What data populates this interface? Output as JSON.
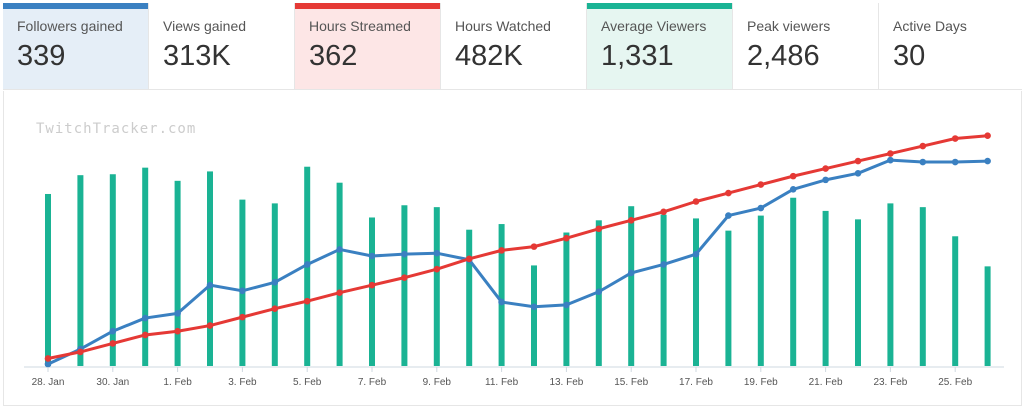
{
  "stats": [
    {
      "label": "Followers gained",
      "value": "339",
      "accent": "#3a80c1",
      "highlight": "blue"
    },
    {
      "label": "Views gained",
      "value": "313K"
    },
    {
      "label": "Hours Streamed",
      "value": "362",
      "accent": "#e53935",
      "highlight": "red"
    },
    {
      "label": "Hours Watched",
      "value": "482K"
    },
    {
      "label": "Average Viewers",
      "value": "1,331",
      "accent": "#1ab394",
      "highlight": "teal"
    },
    {
      "label": "Peak viewers",
      "value": "2,486"
    },
    {
      "label": "Active Days",
      "value": "30"
    }
  ],
  "watermark": "TwitchTracker.com",
  "chart_data": {
    "type": "bar",
    "title": "",
    "categories": [
      "28. Jan",
      "29. Jan",
      "30. Jan",
      "31. Jan",
      "1. Feb",
      "2. Feb",
      "3. Feb",
      "4. Feb",
      "5. Feb",
      "6. Feb",
      "7. Feb",
      "8. Feb",
      "9. Feb",
      "10. Feb",
      "11. Feb",
      "12. Feb",
      "13. Feb",
      "14. Feb",
      "15. Feb",
      "16. Feb",
      "17. Feb",
      "18. Feb",
      "19. Feb",
      "20. Feb",
      "21. Feb",
      "22. Feb",
      "23. Feb",
      "24. Feb",
      "25. Feb",
      "26. Feb"
    ],
    "tick_labels": [
      "28. Jan",
      "30. Jan",
      "1. Feb",
      "3. Feb",
      "5. Feb",
      "7. Feb",
      "9. Feb",
      "11. Feb",
      "13. Feb",
      "15. Feb",
      "17. Feb",
      "19. Feb",
      "21. Feb",
      "23. Feb",
      "25. Feb"
    ],
    "series": [
      {
        "type": "bar",
        "color": "#1ab394",
        "values": [
          183,
          203,
          204,
          211,
          197,
          207,
          177,
          173,
          212,
          195,
          158,
          171,
          169,
          145,
          151,
          107,
          142,
          155,
          170,
          161,
          157,
          144,
          160,
          179,
          165,
          156,
          173,
          169,
          138,
          106
        ]
      },
      {
        "type": "line",
        "color": "#3a80c1",
        "values": [
          2,
          18,
          37,
          51,
          56,
          86,
          80,
          89,
          108,
          124,
          117,
          119,
          120,
          113,
          68,
          63,
          65,
          79,
          99,
          108,
          119,
          160,
          168,
          188,
          198,
          205,
          219,
          217,
          217,
          218
        ]
      },
      {
        "type": "line",
        "color": "#e53935",
        "values": [
          8,
          15,
          24,
          33,
          37,
          43,
          52,
          61,
          69,
          78,
          86,
          94,
          103,
          114,
          123,
          127,
          136,
          146,
          155,
          164,
          175,
          184,
          193,
          202,
          210,
          218,
          226,
          234,
          242,
          245
        ]
      }
    ],
    "ylim": [
      0,
      250
    ],
    "grid": false,
    "legend": "none"
  }
}
